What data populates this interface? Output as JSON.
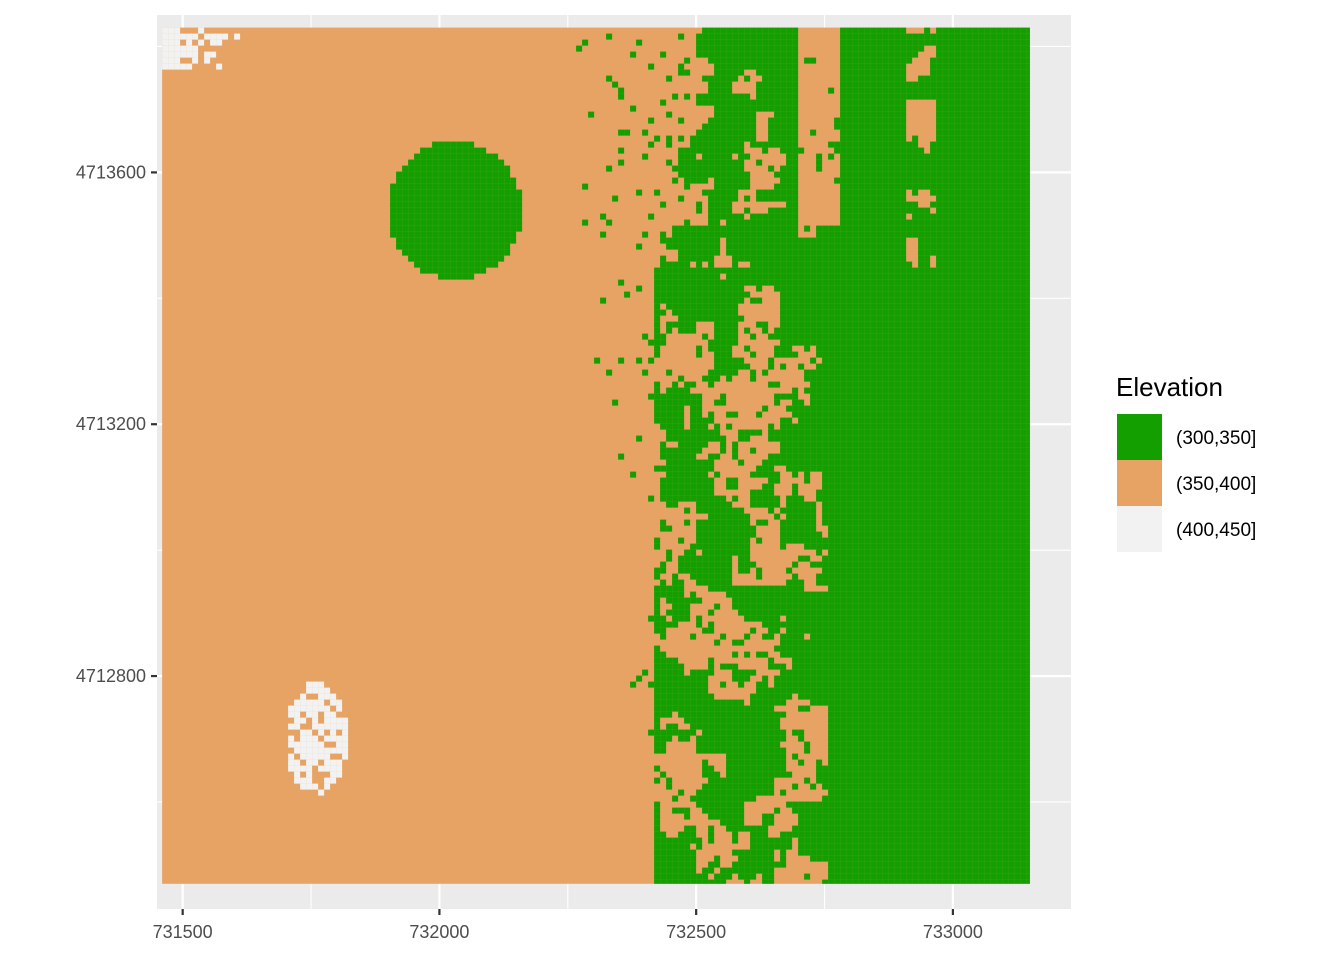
{
  "chart_data": {
    "type": "heatmap",
    "title": "",
    "xlabel": "",
    "ylabel": "",
    "xlim": [
      731450,
      733230
    ],
    "ylim": [
      4712430,
      4713850
    ],
    "raster_extent": {
      "x": [
        731460,
        733150
      ],
      "y": [
        4712470,
        4713830
      ]
    },
    "x_ticks": [
      731500,
      732000,
      732500,
      733000
    ],
    "x_tick_labels": [
      "731500",
      "732000",
      "732500",
      "733000"
    ],
    "y_ticks": [
      4712800,
      4713200,
      4713600
    ],
    "y_tick_labels": [
      "4712800",
      "4713200",
      "4713600"
    ],
    "grid": true,
    "legend": {
      "title": "Elevation",
      "position": "right",
      "items": [
        {
          "label": "(300,350]",
          "color": "#139F00"
        },
        {
          "label": "(350,400]",
          "color": "#E6A363"
        },
        {
          "label": "(400,450]",
          "color": "#F2F2F2"
        }
      ]
    },
    "colors": {
      "panel": "#EBEBEB",
      "grid": "#FFFFFF"
    }
  }
}
